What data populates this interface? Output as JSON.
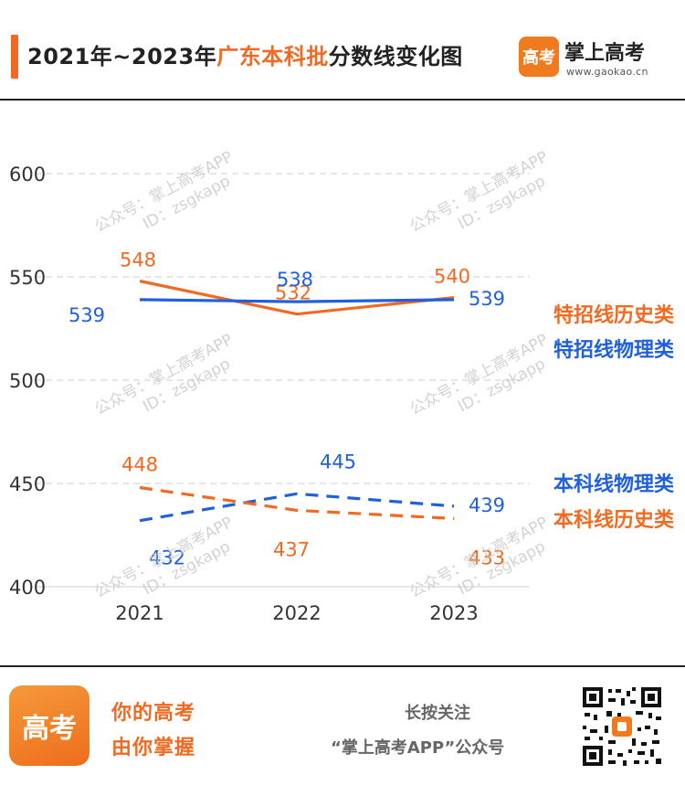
{
  "header": {
    "title_prefix": "2021年~2023年",
    "title_highlight": "广东本科批",
    "title_suffix": "分数线变化图",
    "brand_logo": "高考",
    "brand_name": "掌上高考",
    "brand_url": "www.gaokao.cn"
  },
  "watermark": {
    "line1": "公众号：掌上高考APP",
    "line2": "ID：zsgkapp"
  },
  "colors": {
    "orange": "#f26a21",
    "blue": "#1f5fe0",
    "grid": "#d6d6d6",
    "axis_text": "#333333"
  },
  "chart_data": {
    "type": "line",
    "x": [
      "2021",
      "2022",
      "2023"
    ],
    "ylim": [
      400,
      600
    ],
    "yticks": [
      400,
      450,
      500,
      550,
      600
    ],
    "grid": true,
    "series": [
      {
        "name": "特招线历史类",
        "values": [
          548,
          532,
          540
        ],
        "color": "#f26a21",
        "style": "solid"
      },
      {
        "name": "特招线物理类",
        "values": [
          539,
          538,
          539
        ],
        "color": "#1f5fe0",
        "style": "solid"
      },
      {
        "name": "本科线物理类",
        "values": [
          432,
          445,
          439
        ],
        "color": "#1f5fe0",
        "style": "dashed"
      },
      {
        "name": "本科线历史类",
        "values": [
          448,
          437,
          433
        ],
        "color": "#f26a21",
        "style": "dashed"
      }
    ]
  },
  "footer": {
    "logo": "高考",
    "slogan_line1": "你的高考",
    "slogan_line2": "由你掌握",
    "follow_line1": "长按关注",
    "follow_line2": "“掌上高考APP”公众号"
  }
}
